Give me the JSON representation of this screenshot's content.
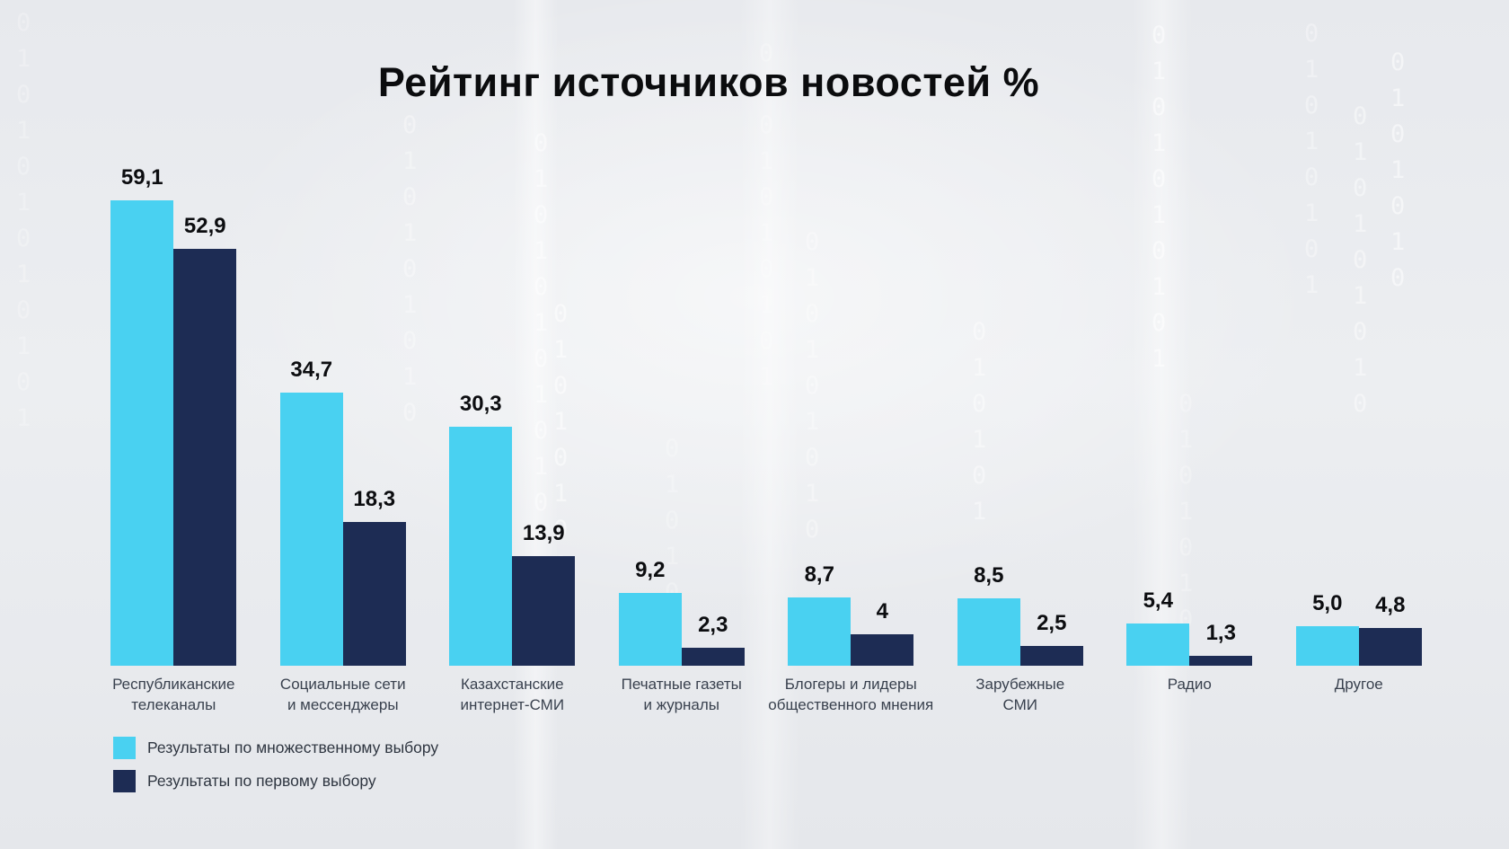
{
  "title": "Рейтинг источников новостей %",
  "colors": {
    "multiple_choice": "#49D1F1",
    "first_choice": "#1D2C54",
    "background": "#EAECEF",
    "title_text": "#0B0C0E",
    "category_text": "#39414E"
  },
  "chart_data": {
    "type": "bar",
    "title": "Рейтинг источников новостей %",
    "categories": [
      "Республиканские телеканалы",
      "Социальные сети и мессенджеры",
      "Казахстанские интернет-СМИ",
      "Печатные газеты и журналы",
      "Блогеры и лидеры общественного мнения",
      "Зарубежные СМИ",
      "Радио",
      "Другое"
    ],
    "categories_display": [
      "Республиканские\nтелеканалы",
      "Социальные сети\nи мессенджеры",
      "Казахстанские\nинтернет-СМИ",
      "Печатные газеты\nи журналы",
      "Блогеры и лидеры\nобщественного мнения",
      "Зарубежные\nСМИ",
      "Радио",
      "Другое"
    ],
    "series": [
      {
        "name": "Результаты по множественному выбору",
        "color": "#49D1F1",
        "values": [
          59.1,
          34.7,
          30.3,
          9.2,
          8.7,
          8.5,
          5.4,
          5.0
        ],
        "value_labels": [
          "59,1",
          "34,7",
          "30,3",
          "9,2",
          "8,7",
          "8,5",
          "5,4",
          "5,0"
        ]
      },
      {
        "name": "Результаты по первому выбору",
        "color": "#1D2C54",
        "values": [
          52.9,
          18.3,
          13.9,
          2.3,
          4,
          2.5,
          1.3,
          4.8
        ],
        "value_labels": [
          "52,9",
          "18,3",
          "13,9",
          "2,3",
          "4",
          "2,5",
          "1,3",
          "4,8"
        ]
      }
    ],
    "ylim": [
      0,
      60
    ],
    "grid": false,
    "axes_shown": false,
    "value_labels_position": "above-bars",
    "legend_position": "bottom-left"
  },
  "legend": {
    "items": [
      {
        "label": "Результаты по множественному выбору",
        "color": "#49D1F1"
      },
      {
        "label": "Результаты по первому выбору",
        "color": "#1D2C54"
      }
    ]
  }
}
